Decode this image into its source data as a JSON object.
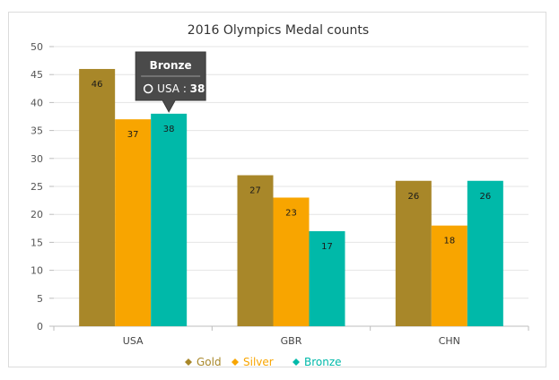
{
  "chart_data": {
    "type": "bar",
    "title": "2016 Olympics Medal counts",
    "categories": [
      "USA",
      "GBR",
      "CHN"
    ],
    "series": [
      {
        "name": "Gold",
        "values": [
          46,
          27,
          26
        ],
        "color": "#a88729"
      },
      {
        "name": "Silver",
        "values": [
          37,
          23,
          18
        ],
        "color": "#f8a500"
      },
      {
        "name": "Bronze",
        "values": [
          38,
          17,
          26
        ],
        "color": "#00b9a9"
      }
    ],
    "ylim": [
      0,
      50
    ],
    "yticks": [
      0,
      5,
      10,
      15,
      20,
      25,
      30,
      35,
      40,
      45,
      50
    ],
    "xlabel": "",
    "ylabel": "",
    "grid": true,
    "legend": "bottom",
    "data_labels": true
  },
  "tooltip": {
    "title": "Bronze",
    "category": "USA",
    "separator": " : ",
    "value": "38",
    "series_color": "#ffffff"
  }
}
